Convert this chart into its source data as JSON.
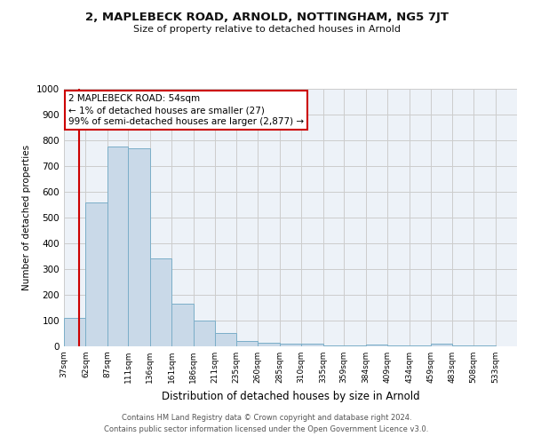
{
  "title1": "2, MAPLEBECK ROAD, ARNOLD, NOTTINGHAM, NG5 7JT",
  "title2": "Size of property relative to detached houses in Arnold",
  "xlabel": "Distribution of detached houses by size in Arnold",
  "ylabel": "Number of detached properties",
  "bar_edges": [
    37,
    62,
    87,
    111,
    136,
    161,
    186,
    211,
    235,
    260,
    285,
    310,
    335,
    359,
    384,
    409,
    434,
    459,
    483,
    508,
    533
  ],
  "bar_heights": [
    110,
    560,
    775,
    770,
    340,
    165,
    100,
    52,
    20,
    13,
    11,
    9,
    5,
    3,
    8,
    3,
    3,
    10,
    3,
    3
  ],
  "bar_color": "#c9d9e8",
  "bar_edge_color": "#7baec8",
  "ylim": [
    0,
    1000
  ],
  "red_line_x": 54,
  "annotation_text": "2 MAPLEBECK ROAD: 54sqm\n← 1% of detached houses are smaller (27)\n99% of semi-detached houses are larger (2,877) →",
  "annotation_box_color": "#ffffff",
  "annotation_box_edgecolor": "#cc0000",
  "footer1": "Contains HM Land Registry data © Crown copyright and database right 2024.",
  "footer2": "Contains public sector information licensed under the Open Government Licence v3.0.",
  "yticks": [
    0,
    100,
    200,
    300,
    400,
    500,
    600,
    700,
    800,
    900,
    1000
  ],
  "grid_color": "#cccccc",
  "background_color": "#edf2f8"
}
